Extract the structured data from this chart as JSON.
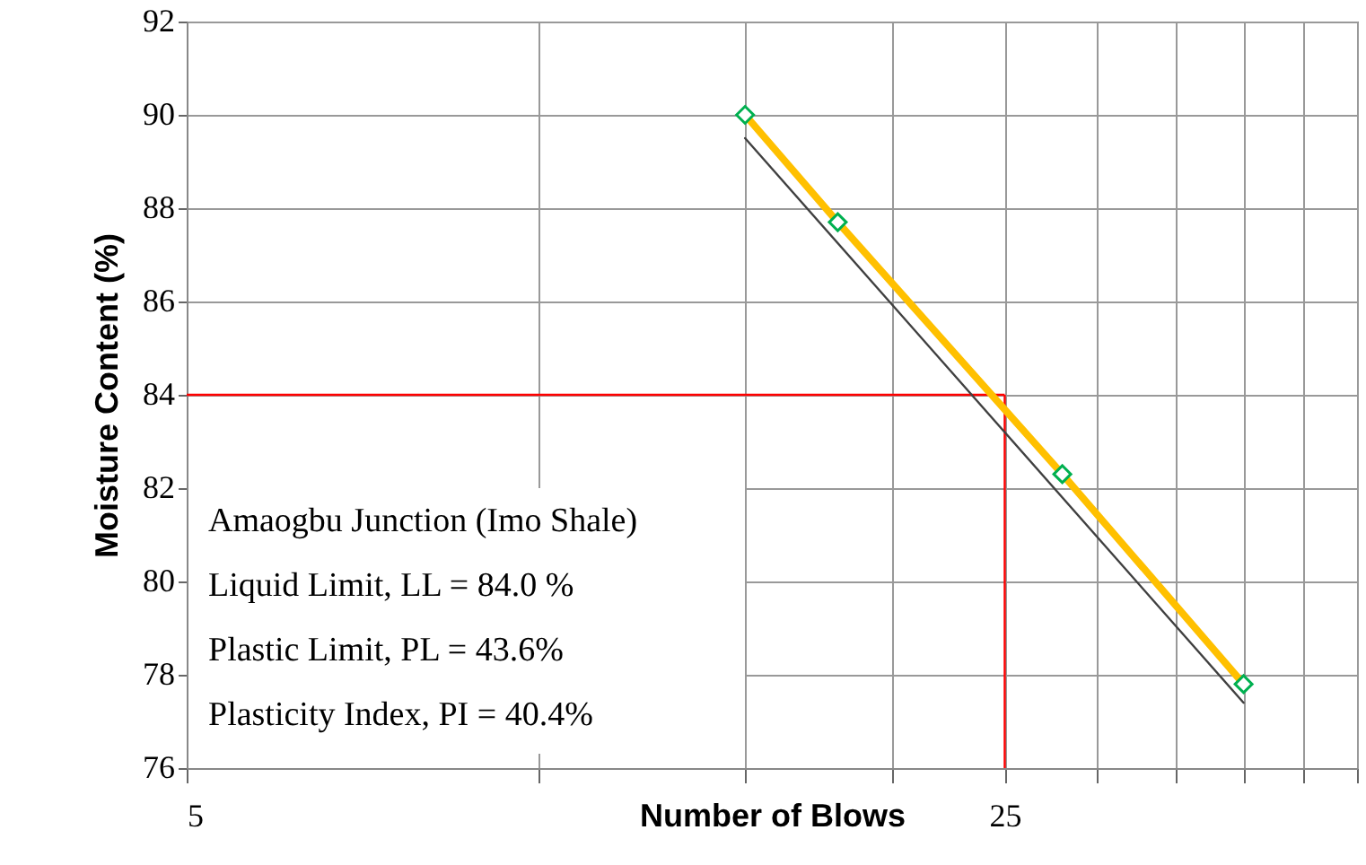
{
  "chart_data": {
    "type": "line",
    "xlabel": "Number of Blows",
    "ylabel": "Moisture Content (%)",
    "log": "x",
    "xlim": [
      5,
      50
    ],
    "ylim": [
      76,
      92
    ],
    "xticks": [
      5,
      {
        "value": 10,
        "label": null
      },
      {
        "value": 15,
        "label": null
      },
      {
        "value": 20,
        "label": null
      },
      25,
      {
        "value": 30,
        "label": null
      },
      {
        "value": 35,
        "label": null
      },
      {
        "value": 40,
        "label": null
      },
      {
        "value": 45,
        "label": null
      },
      {
        "value": 50,
        "label": null
      }
    ],
    "yticks": [
      76,
      78,
      80,
      82,
      84,
      86,
      88,
      90,
      92
    ],
    "grid": true,
    "series": [
      {
        "type": "line",
        "color": "#ffc000",
        "marker": "diamond",
        "x": [
          15,
          18,
          28,
          40
        ],
        "values": [
          90.0,
          87.7,
          82.3,
          77.8
        ]
      },
      {
        "type": "line",
        "color": "#404040",
        "marker": "none",
        "x": [
          15,
          40
        ],
        "values": [
          89.5,
          77.4
        ]
      }
    ],
    "ref_lines": [
      {
        "axis": "y",
        "value": 84,
        "label": null,
        "color": "#ff0000"
      },
      {
        "axis": "x",
        "value": 25,
        "label": null,
        "color": "#ff0000"
      }
    ],
    "annotations": [
      "Amaogbu Junction (Imo Shale)",
      "Liquid Limit, LL = 84.0 %",
      "Plastic Limit, PL = 43.6%",
      "Plasticity Index, PI = 40.4%"
    ]
  }
}
